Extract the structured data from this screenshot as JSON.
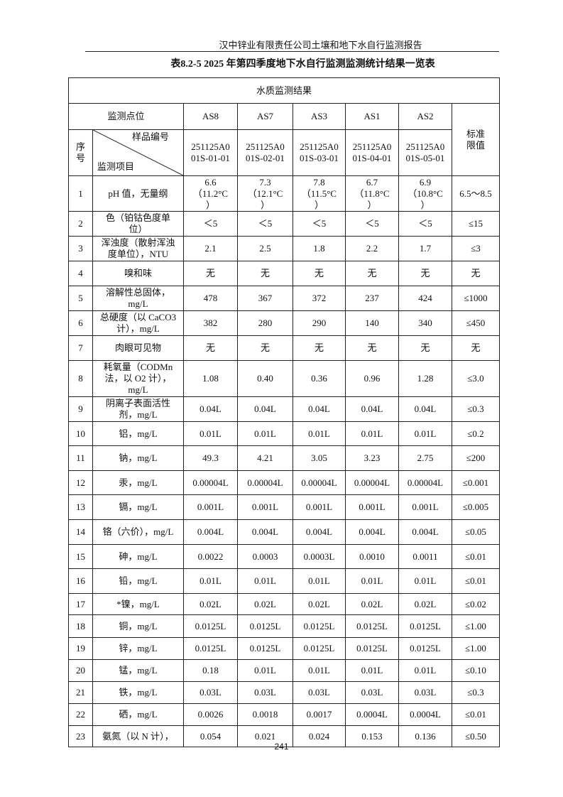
{
  "header": "汉中锌业有限责任公司土壤和地下水自行监测报告",
  "title": "表8.2-5    2025 年第四季度地下水自行监测监测统计结果一览表",
  "table": {
    "caption": "水质监测结果",
    "site_label": "监测点位",
    "sites": [
      "AS8",
      "AS7",
      "AS3",
      "AS1",
      "AS2"
    ],
    "std_label": "标准\n限值",
    "seq_label": "序\n号",
    "sample_label": "样品编号",
    "item_label": "监测项目",
    "samples": [
      "251125A0\n01S-01-01",
      "251125A0\n01S-02-01",
      "251125A0\n01S-03-01",
      "251125A0\n01S-04-01",
      "251125A0\n01S-05-01"
    ],
    "rows": [
      {
        "no": "1",
        "item": "pH 值，无量纲",
        "values": [
          "6.6\n（11.2°C\n）",
          "7.3\n（12.1°C\n）",
          "7.8\n（11.5°C\n）",
          "6.7\n（11.8°C\n）",
          "6.9\n（10.8°C\n）"
        ],
        "std": "6.5～8.5"
      },
      {
        "no": "2",
        "item": "色（铂钴色度单\n位）",
        "values": [
          "＜5",
          "＜5",
          "＜5",
          "＜5",
          "＜5"
        ],
        "std": "≤15"
      },
      {
        "no": "3",
        "item": "浑浊度（散射浑浊\n度单位），NTU",
        "values": [
          "2.1",
          "2.5",
          "1.8",
          "2.2",
          "1.7"
        ],
        "std": "≤3"
      },
      {
        "no": "4",
        "item": "嗅和味",
        "values": [
          "无",
          "无",
          "无",
          "无",
          "无"
        ],
        "std": "无"
      },
      {
        "no": "5",
        "item": "溶解性总固体，\nmg/L",
        "values": [
          "478",
          "367",
          "372",
          "237",
          "424"
        ],
        "std": "≤1000"
      },
      {
        "no": "6",
        "item": "总硬度（以 CaCO3\n计），mg/L",
        "values": [
          "382",
          "280",
          "290",
          "140",
          "340"
        ],
        "std": "≤450"
      },
      {
        "no": "7",
        "item": "肉眼可见物",
        "values": [
          "无",
          "无",
          "无",
          "无",
          "无"
        ],
        "std": "无"
      },
      {
        "no": "8",
        "item": "耗氧量（CODMn\n法，以 O2 计），\nmg/L",
        "values": [
          "1.08",
          "0.40",
          "0.36",
          "0.96",
          "1.28"
        ],
        "std": "≤3.0"
      },
      {
        "no": "9",
        "item": "阴离子表面活性\n剂，mg/L",
        "values": [
          "0.04L",
          "0.04L",
          "0.04L",
          "0.04L",
          "0.04L"
        ],
        "std": "≤0.3"
      },
      {
        "no": "10",
        "item": "铝，mg/L",
        "values": [
          "0.01L",
          "0.01L",
          "0.01L",
          "0.01L",
          "0.01L"
        ],
        "std": "≤0.2"
      },
      {
        "no": "11",
        "item": "钠，mg/L",
        "values": [
          "49.3",
          "4.21",
          "3.05",
          "3.23",
          "2.75"
        ],
        "std": "≤200"
      },
      {
        "no": "12",
        "item": "汞，mg/L",
        "values": [
          "0.00004L",
          "0.00004L",
          "0.00004L",
          "0.00004L",
          "0.00004L"
        ],
        "std": "≤0.001"
      },
      {
        "no": "13",
        "item": "镉，mg/L",
        "values": [
          "0.001L",
          "0.001L",
          "0.001L",
          "0.001L",
          "0.001L"
        ],
        "std": "≤0.005"
      },
      {
        "no": "14",
        "item": "铬（六价），mg/L",
        "values": [
          "0.004L",
          "0.004L",
          "0.004L",
          "0.004L",
          "0.004L"
        ],
        "std": "≤0.05"
      },
      {
        "no": "15",
        "item": "砷，mg/L",
        "values": [
          "0.0022",
          "0.0003",
          "0.0003L",
          "0.0010",
          "0.0011"
        ],
        "std": "≤0.01"
      },
      {
        "no": "16",
        "item": "铅，mg/L",
        "values": [
          "0.01L",
          "0.01L",
          "0.01L",
          "0.01L",
          "0.01L"
        ],
        "std": "≤0.01"
      },
      {
        "no": "17",
        "item": "*镍，mg/L",
        "values": [
          "0.02L",
          "0.02L",
          "0.02L",
          "0.02L",
          "0.02L"
        ],
        "std": "≤0.02"
      },
      {
        "no": "18",
        "item": "铜，mg/L",
        "values": [
          "0.0125L",
          "0.0125L",
          "0.0125L",
          "0.0125L",
          "0.0125L"
        ],
        "std": "≤1.00"
      },
      {
        "no": "19",
        "item": "锌，mg/L",
        "values": [
          "0.0125L",
          "0.0125L",
          "0.0125L",
          "0.0125L",
          "0.0125L"
        ],
        "std": "≤1.00"
      },
      {
        "no": "20",
        "item": "锰，mg/L",
        "values": [
          "0.18",
          "0.01L",
          "0.01L",
          "0.01L",
          "0.01L"
        ],
        "std": "≤0.10"
      },
      {
        "no": "21",
        "item": "铁，mg/L",
        "values": [
          "0.03L",
          "0.03L",
          "0.03L",
          "0.03L",
          "0.03L"
        ],
        "std": "≤0.3"
      },
      {
        "no": "22",
        "item": "硒，mg/L",
        "values": [
          "0.0026",
          "0.0018",
          "0.0017",
          "0.0004L",
          "0.0004L"
        ],
        "std": "≤0.01"
      },
      {
        "no": "23",
        "item": "氨氮（以 N 计），",
        "values": [
          "0.054",
          "0.021",
          "0.024",
          "0.153",
          "0.136"
        ],
        "std": "≤0.50"
      }
    ]
  },
  "page_number": "241"
}
